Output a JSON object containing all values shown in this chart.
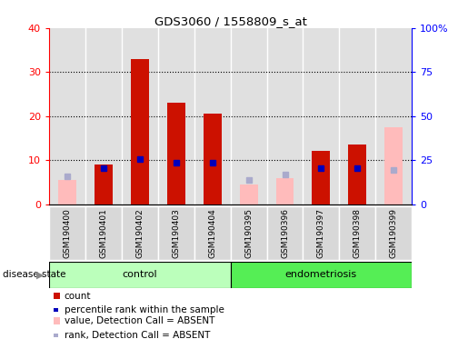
{
  "title": "GDS3060 / 1558809_s_at",
  "samples": [
    "GSM190400",
    "GSM190401",
    "GSM190402",
    "GSM190403",
    "GSM190404",
    "GSM190395",
    "GSM190396",
    "GSM190397",
    "GSM190398",
    "GSM190399"
  ],
  "count": [
    null,
    9,
    33,
    23,
    20.5,
    null,
    null,
    12,
    13.5,
    null
  ],
  "count_absent": [
    5.5,
    null,
    null,
    null,
    null,
    4.5,
    6,
    null,
    null,
    17.5
  ],
  "percentile_rank": [
    null,
    20.5,
    25.5,
    23.5,
    23.5,
    null,
    null,
    20.5,
    20.5,
    null
  ],
  "rank_absent": [
    16,
    null,
    null,
    null,
    null,
    13.5,
    17,
    null,
    null,
    19.5
  ],
  "ylim_left": [
    0,
    40
  ],
  "ylim_right": [
    0,
    100
  ],
  "yticks_left": [
    0,
    10,
    20,
    30,
    40
  ],
  "yticks_right": [
    0,
    25,
    50,
    75,
    100
  ],
  "yticklabels_right": [
    "0",
    "25",
    "50",
    "75",
    "100%"
  ],
  "bar_color_red": "#cc1100",
  "bar_color_pink": "#ffbbbb",
  "dot_color_blue": "#0000bb",
  "dot_color_lightblue": "#aaaacc",
  "ctrl_color": "#bbffbb",
  "endo_color": "#55ee55",
  "col_bg": "#d8d8d8",
  "bar_width": 0.5
}
